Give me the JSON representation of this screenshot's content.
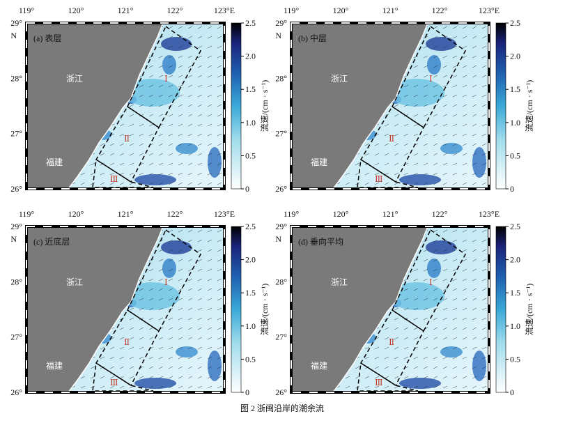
{
  "figure": {
    "panels": [
      {
        "label": "(a) 表层",
        "province_labels": [
          "浙江",
          "福建"
        ],
        "region_labels": [
          "Ⅰ",
          "Ⅱ",
          "Ⅲ"
        ],
        "colorbar_label": "流速/(cm · s⁻¹)"
      },
      {
        "label": "(b) 中层",
        "province_labels": [
          "浙江",
          "福建"
        ],
        "region_labels": [
          "Ⅰ",
          "Ⅱ",
          "Ⅲ"
        ],
        "colorbar_label": "流速/(cm · s⁻¹)"
      },
      {
        "label": "(c) 近底层",
        "province_labels": [
          "浙江",
          "福建"
        ],
        "region_labels": [
          "Ⅰ",
          "Ⅱ",
          "Ⅲ"
        ],
        "colorbar_label": "流速/(cm · s⁻¹)"
      },
      {
        "label": "(d) 垂向平均",
        "province_labels": [
          "浙江",
          "福建"
        ],
        "region_labels": [
          "Ⅰ",
          "Ⅱ",
          "Ⅲ"
        ],
        "colorbar_label": "流速/(cm · s⁻¹)"
      }
    ],
    "lon_ticks": [
      "119°",
      "120°",
      "121°",
      "122°",
      "123°E"
    ],
    "lat_ticks": [
      "29°",
      "28°",
      "27°",
      "26°"
    ],
    "lat_axis_label": "N",
    "colorbar_ticks": [
      "2.5",
      "2.0",
      "1.5",
      "1.0",
      "0.5",
      "0"
    ],
    "caption": "图 2   浙闽沿岸的潮余流"
  }
}
